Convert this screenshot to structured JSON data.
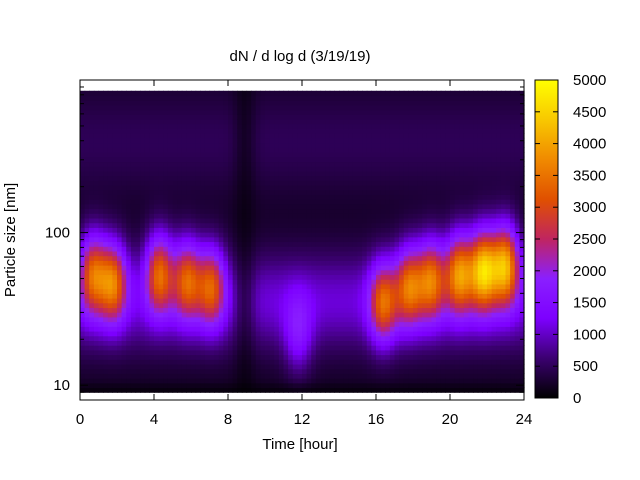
{
  "chart_data": {
    "type": "heatmap",
    "title": "dN / d log d (3/19/19)",
    "xlabel": "Time [hour]",
    "ylabel": "Particle size [nm]",
    "xlim": [
      0,
      24
    ],
    "ylim": [
      8,
      1000
    ],
    "y_scale": "log",
    "x_ticks": [
      "0",
      "4",
      "8",
      "12",
      "16",
      "20",
      "24"
    ],
    "x_tick_values": [
      0,
      4,
      8,
      12,
      16,
      20,
      24
    ],
    "y_ticks": [
      "10",
      "100"
    ],
    "y_tick_values": [
      10,
      100
    ],
    "colorbar": {
      "min": 0,
      "max": 5000,
      "ticks": [
        "0",
        "500",
        "1000",
        "1500",
        "2000",
        "2500",
        "3000",
        "3500",
        "4000",
        "4500",
        "5000"
      ],
      "tick_values": [
        0,
        500,
        1000,
        1500,
        2000,
        2500,
        3000,
        3500,
        4000,
        4500,
        5000
      ],
      "palette": [
        "#000000",
        "#3b0070",
        "#7d00ff",
        "#8a1fff",
        "#c02560",
        "#e05000",
        "#f08a00",
        "#f8c800",
        "#ffff00"
      ]
    },
    "grid": false,
    "legend": "none",
    "hotspots": [
      {
        "t": 0.7,
        "d": 55,
        "amp": 3400
      },
      {
        "t": 1.8,
        "d": 48,
        "amp": 3500
      },
      {
        "t": 4.3,
        "d": 55,
        "amp": 3500
      },
      {
        "t": 5.8,
        "d": 50,
        "amp": 3300
      },
      {
        "t": 7.1,
        "d": 45,
        "amp": 3200
      },
      {
        "t": 11.8,
        "d": 22,
        "amp": 1900
      },
      {
        "t": 16.4,
        "d": 35,
        "amp": 3300
      },
      {
        "t": 17.8,
        "d": 45,
        "amp": 3400
      },
      {
        "t": 19.0,
        "d": 50,
        "amp": 3500
      },
      {
        "t": 20.5,
        "d": 55,
        "amp": 3900
      },
      {
        "t": 21.8,
        "d": 58,
        "amp": 4500
      },
      {
        "t": 23.0,
        "d": 62,
        "amp": 4300
      }
    ]
  }
}
